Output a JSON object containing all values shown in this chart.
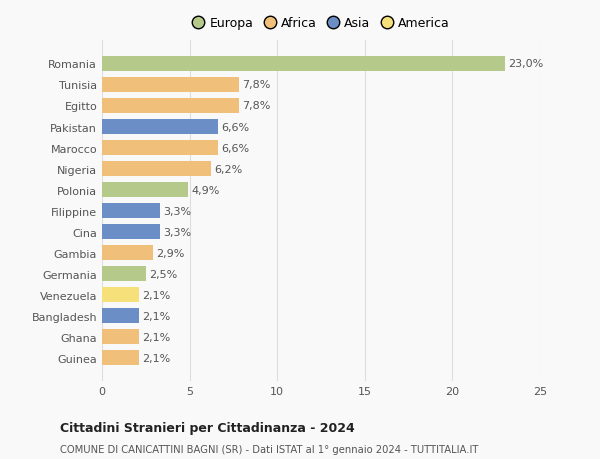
{
  "categories": [
    "Guinea",
    "Ghana",
    "Bangladesh",
    "Venezuela",
    "Germania",
    "Gambia",
    "Cina",
    "Filippine",
    "Polonia",
    "Nigeria",
    "Marocco",
    "Pakistan",
    "Egitto",
    "Tunisia",
    "Romania"
  ],
  "values": [
    2.1,
    2.1,
    2.1,
    2.1,
    2.5,
    2.9,
    3.3,
    3.3,
    4.9,
    6.2,
    6.6,
    6.6,
    7.8,
    7.8,
    23.0
  ],
  "labels": [
    "2,1%",
    "2,1%",
    "2,1%",
    "2,1%",
    "2,5%",
    "2,9%",
    "3,3%",
    "3,3%",
    "4,9%",
    "6,2%",
    "6,6%",
    "6,6%",
    "7,8%",
    "7,8%",
    "23,0%"
  ],
  "colors": [
    "#f0c07a",
    "#f0c07a",
    "#6b8ec7",
    "#f5e07a",
    "#b5c98a",
    "#f0c07a",
    "#6b8ec7",
    "#6b8ec7",
    "#b5c98a",
    "#f0c07a",
    "#f0c07a",
    "#6b8ec7",
    "#f0c07a",
    "#f0c07a",
    "#b5c98a"
  ],
  "legend_labels": [
    "Europa",
    "Africa",
    "Asia",
    "America"
  ],
  "legend_colors": [
    "#b5c98a",
    "#f0c07a",
    "#6b8ec7",
    "#f5e07a"
  ],
  "title": "Cittadini Stranieri per Cittadinanza - 2024",
  "subtitle": "COMUNE DI CANICATTINI BAGNI (SR) - Dati ISTAT al 1° gennaio 2024 - TUTTITALIA.IT",
  "xlim": [
    0,
    25
  ],
  "xticks": [
    0,
    5,
    10,
    15,
    20,
    25
  ],
  "background_color": "#f9f9f9",
  "bar_height": 0.72,
  "grid_color": "#dddddd",
  "label_fontsize": 8,
  "ytick_fontsize": 8,
  "xtick_fontsize": 8
}
